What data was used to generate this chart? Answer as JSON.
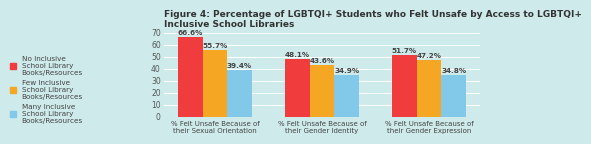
{
  "title": "Figure 4: Percentage of LGBTQI+ Students who Felt Unsafe by Access to LGBTQI+\nInclusive School Libraries",
  "categories": [
    "% Felt Unsafe Because of\ntheir Sexual Orientation",
    "% Felt Unsafe Because of\ntheir Gender Identity",
    "% Felt Unsafe Because of\ntheir Gender Expression"
  ],
  "series_values": [
    [
      66.6,
      48.1,
      51.7
    ],
    [
      55.7,
      43.6,
      47.2
    ],
    [
      39.4,
      34.9,
      34.8
    ]
  ],
  "colors": [
    "#f03c3c",
    "#f5a623",
    "#82c8e8"
  ],
  "legend_labels": [
    "No Inclusive\nSchool Library\nBooks/Resources",
    "Few Inclusive\nSchool Library\nBooks/Resources",
    "Many Inclusive\nSchool Library\nBooks/Resources"
  ],
  "ylim": [
    0,
    70
  ],
  "yticks": [
    0,
    10,
    20,
    30,
    40,
    50,
    60,
    70
  ],
  "background_color": "#ceeaeb",
  "bar_width": 0.23,
  "value_fontsize": 5.2,
  "label_fontsize": 5.0,
  "title_fontsize": 6.5,
  "legend_fontsize": 5.2,
  "ytick_fontsize": 5.5
}
